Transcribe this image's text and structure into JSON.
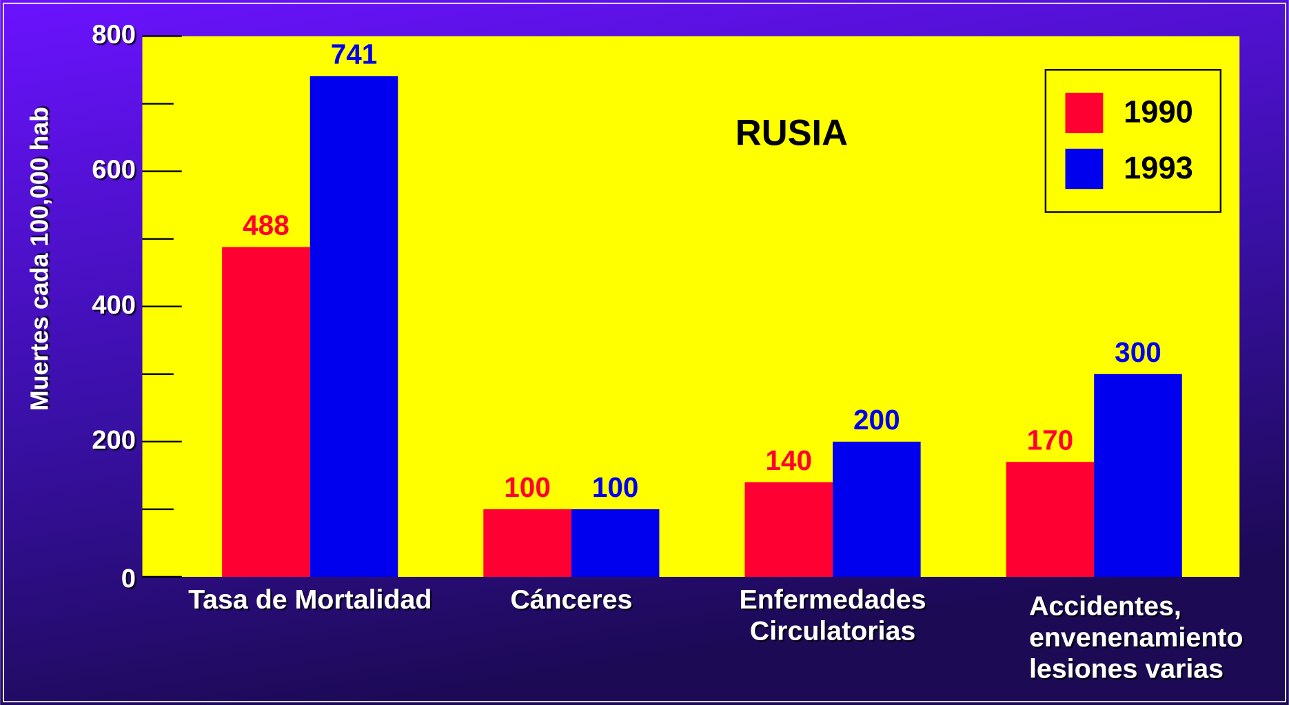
{
  "chart_data": {
    "type": "bar",
    "title": "RUSIA",
    "y_label": "Muertes cada 100,000 hab",
    "categories": [
      [
        "Tasa  de Mortalidad"
      ],
      [
        "Cánceres"
      ],
      [
        "Enfermedades",
        "Circulatorias"
      ],
      [
        "Accidentes,",
        "envenenamiento",
        "lesiones varias"
      ]
    ],
    "series": [
      {
        "name": "1990",
        "color": "#ff0033",
        "values": [
          488,
          100,
          140,
          170
        ]
      },
      {
        "name": "1993",
        "color": "#0000ee",
        "values": [
          741,
          100,
          200,
          300
        ]
      }
    ],
    "ylim": [
      0,
      800
    ],
    "yticks": [
      0,
      200,
      400,
      600,
      800
    ],
    "minor_yticks": [
      100,
      300,
      500,
      700
    ],
    "plot_background": "#ffff00",
    "legend": "upper right"
  }
}
